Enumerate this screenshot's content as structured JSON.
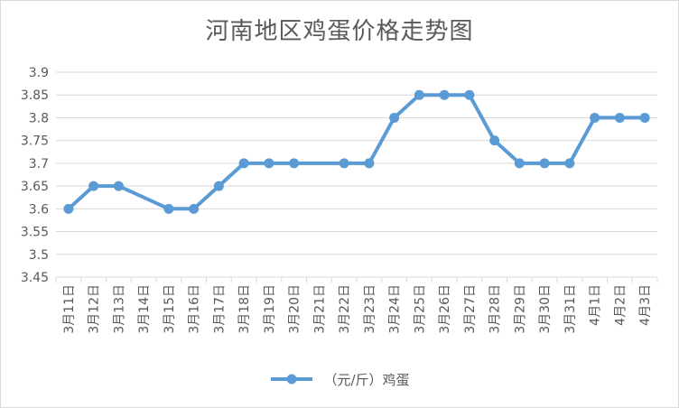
{
  "colors": {
    "series": "#5b9bd5",
    "grid": "#d9d9d9",
    "text": "#595959"
  },
  "chart_data": {
    "type": "line",
    "title": "河南地区鸡蛋价格走势图",
    "categories": [
      "3月11日",
      "3月12日",
      "3月13日",
      "3月14日",
      "3月15日",
      "3月16日",
      "3月17日",
      "3月18日",
      "3月19日",
      "3月20日",
      "3月21日",
      "3月22日",
      "3月23日",
      "3月24日",
      "3月25日",
      "3月26日",
      "3月27日",
      "3月28日",
      "3月29日",
      "3月30日",
      "3月31日",
      "4月1日",
      "4月2日",
      "4月3日"
    ],
    "series": [
      {
        "name": "（元/斤）鸡蛋",
        "values": [
          3.6,
          3.65,
          3.65,
          null,
          3.6,
          3.6,
          3.65,
          3.7,
          3.7,
          3.7,
          null,
          3.7,
          3.7,
          3.8,
          3.85,
          3.85,
          3.85,
          3.75,
          3.7,
          3.7,
          3.7,
          3.8,
          3.8,
          3.8
        ],
        "line_connects_gaps": true
      }
    ],
    "y_ticks": [
      "3.45",
      "3.5",
      "3.55",
      "3.6",
      "3.65",
      "3.7",
      "3.75",
      "3.8",
      "3.85",
      "3.9"
    ],
    "ylim": [
      3.45,
      3.9
    ],
    "grid": true,
    "legend_position": "bottom",
    "xlabel": "",
    "ylabel": ""
  }
}
